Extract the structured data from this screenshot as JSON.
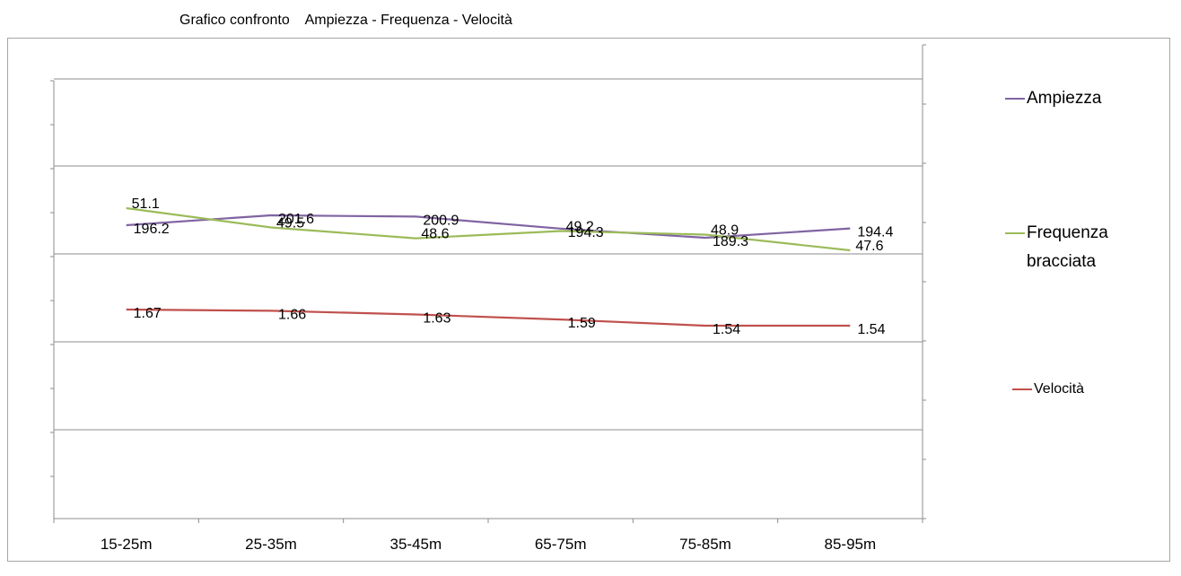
{
  "title": "Grafico confronto    Ampiezza - Frequenza - Velocità",
  "chart_data": {
    "type": "line",
    "title": "Grafico confronto    Ampiezza - Frequenza - Velocità",
    "xlabel": "",
    "ylabel": "",
    "categories": [
      "15-25m",
      "25-35m",
      "35-45m",
      "65-75m",
      "75-85m",
      "85-95m"
    ],
    "series": [
      {
        "name": "Ampiezza",
        "color": "#8064a2",
        "values": [
          196.2,
          201.6,
          200.9,
          194.3,
          189.3,
          194.4
        ],
        "labels": [
          "196.2",
          "201.6",
          "200.9",
          "194.3",
          "189.3",
          "194.4"
        ]
      },
      {
        "name": "Frequenza bracciata",
        "color": "#9bbb59",
        "values": [
          51.1,
          49.5,
          48.6,
          49.2,
          48.9,
          47.6
        ],
        "labels": [
          "51.1",
          "49.5",
          "48.6",
          "49.2",
          "48.9",
          "47.6"
        ]
      },
      {
        "name": "Velocità",
        "color": "#c0504d",
        "values": [
          1.67,
          1.66,
          1.63,
          1.59,
          1.54,
          1.54
        ],
        "labels": [
          "1.67",
          "1.66",
          "1.63",
          "1.59",
          "1.54",
          "1.54"
        ]
      }
    ],
    "legend": [
      {
        "label_lines": [
          "Ampiezza"
        ]
      },
      {
        "label_lines": [
          "Frequenza",
          "bracciata"
        ]
      },
      {
        "label_lines": [
          "Velocità"
        ]
      }
    ],
    "grid": true,
    "legend_position": "right"
  }
}
